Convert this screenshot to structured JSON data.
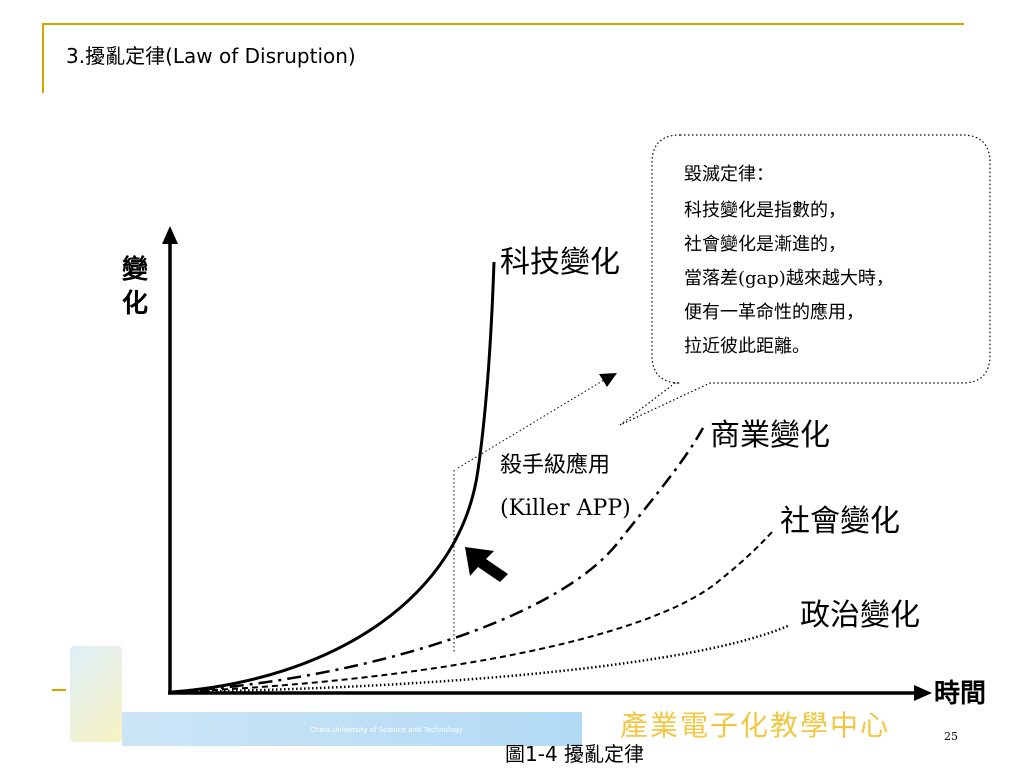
{
  "slide": {
    "title": "3.擾亂定律(Law of Disruption)",
    "caption": "圖1-4  擾亂定律",
    "page_number": "25",
    "footer_institution_cn": "產業電子化教學中心",
    "footer_institution_en": "China University of Science and Technology"
  },
  "diagram": {
    "y_axis_label_line1": "變",
    "y_axis_label_line2": "化",
    "x_axis_label": "時間",
    "curves": {
      "tech": "科技變化",
      "business": "商業變化",
      "social": "社會變化",
      "political": "政治變化"
    },
    "killer_app_cn": "殺手級應用",
    "killer_app_en": "(Killer APP)",
    "callout_lines": [
      "毀滅定律：",
      "科技變化是指數的，",
      "社會變化是漸進的，",
      "當落差(gap)越來越大時，",
      "便有一革命性的應用，",
      "拉近彼此距離。"
    ]
  }
}
